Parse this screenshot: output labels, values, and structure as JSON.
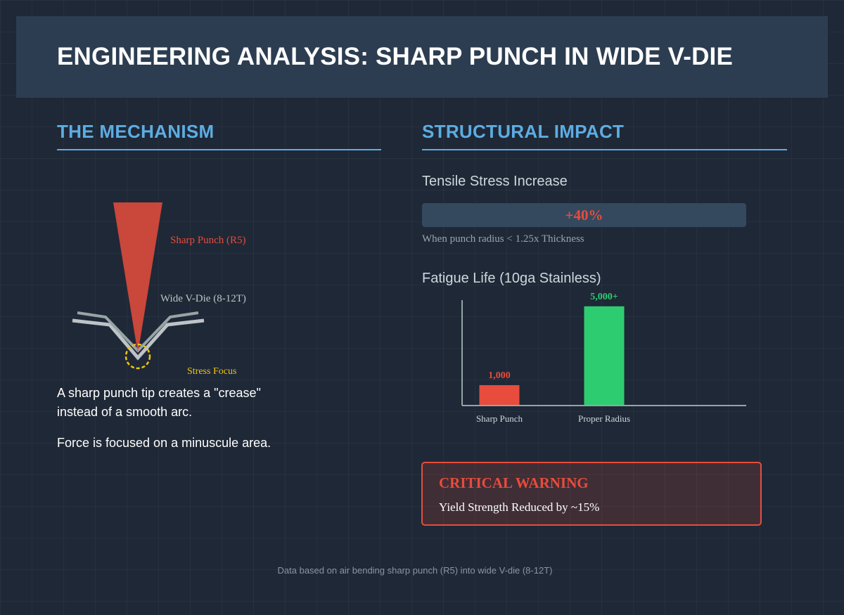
{
  "header": {
    "title": "ENGINEERING ANALYSIS: SHARP PUNCH IN WIDE V-DIE"
  },
  "mechanism": {
    "title": "THE MECHANISM",
    "punch_label": "Sharp Punch (R5)",
    "die_label": "Wide V-Die (8-12T)",
    "stress_label": "Stress Focus",
    "paragraph1": "A sharp punch tip creates a \"crease\" instead of a smooth arc.",
    "paragraph2": "Force is focused on a minuscule area.",
    "colors": {
      "punch": "#e74c3c",
      "die": "#bdc3c7",
      "stress": "#f1c40f"
    }
  },
  "impact": {
    "title": "STRUCTURAL IMPACT",
    "tensile": {
      "label": "Tensile Stress Increase",
      "value": "+40%",
      "note": "When punch radius < 1.25x Thickness"
    },
    "fatigue": {
      "label": "Fatigue Life (10ga Stainless)"
    },
    "warning": {
      "title": "CRITICAL WARNING",
      "text": "Yield Strength Reduced by ~15%"
    }
  },
  "chart_data": {
    "type": "bar",
    "categories": [
      "Sharp Punch",
      "Proper Radius"
    ],
    "values": [
      1000,
      5000
    ],
    "data_labels": [
      "1,000",
      "5,000+"
    ],
    "colors": [
      "#e74c3c",
      "#2ecc71"
    ],
    "ylim": [
      0,
      5100
    ],
    "grid": false,
    "title": "",
    "xlabel": "",
    "ylabel": ""
  },
  "footer": {
    "text": "Data based on air bending sharp punch (R5) into wide V-die (8-12T)"
  }
}
